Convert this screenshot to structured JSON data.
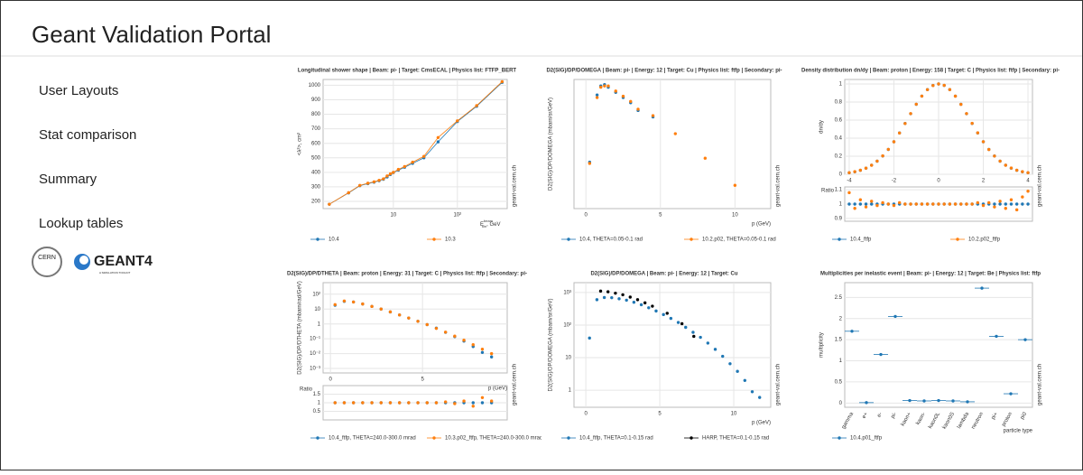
{
  "header": {
    "title": "Geant Validation Portal"
  },
  "nav": [
    "User Layouts",
    "Stat comparison",
    "Summary",
    "Lookup tables"
  ],
  "logos": {
    "cern": "CERN",
    "geant": "GEANT4",
    "tagline": "A SIMULATION TOOLKIT"
  },
  "watermark": "geant-val.cern.ch",
  "charts": [
    {
      "type": "scatter",
      "title": "Longitudinal shower shape | Beam: pi- | Target: CmsECAL | Physics list: FTFP_BERT",
      "xlabel": {
        "main": "E",
        "sup": "beam",
        "sub": "kin",
        "unit": ", GeV"
      },
      "ylabel": "<λ²>, cm²",
      "xlog": true,
      "line": true,
      "xlim": [
        0.8,
        600
      ],
      "ylim": [
        150,
        1040
      ],
      "xticks": [
        10,
        {
          "value": 100,
          "label": "10²"
        }
      ],
      "yticks": [
        200,
        300,
        400,
        500,
        600,
        700,
        800,
        900,
        1000
      ],
      "series": [
        {
          "name": "10.4",
          "color": "#1f77b4",
          "x": [
            1,
            2,
            3,
            4,
            5,
            6,
            7,
            8,
            9,
            10,
            12,
            15,
            20,
            30,
            50,
            100,
            200,
            500
          ],
          "values": [
            180,
            258,
            308,
            322,
            332,
            342,
            352,
            368,
            385,
            398,
            415,
            435,
            462,
            500,
            610,
            750,
            855,
            1020
          ]
        },
        {
          "name": "10.3",
          "color": "#ff7f0e",
          "x": [
            1,
            2,
            3,
            4,
            5,
            6,
            7,
            8,
            9,
            10,
            12,
            15,
            20,
            30,
            50,
            100,
            200,
            500
          ],
          "values": [
            180,
            260,
            310,
            325,
            335,
            345,
            355,
            375,
            390,
            400,
            420,
            440,
            470,
            510,
            640,
            755,
            860,
            1025
          ]
        }
      ]
    },
    {
      "type": "scatter",
      "title": "D2(SIG)/DP/DOMEGA | Beam: pi- | Energy: 12 | Target: Cu | Physics list: ftfp | Secondary: pi-",
      "xlabel": "p (GeV)",
      "ylabel": "D2(SIG)/DP/DOMEGA (mbarn/sr/GeV)",
      "xlim": [
        -0.8,
        12.4
      ],
      "ylim": [
        0,
        100
      ],
      "xticks": [
        0,
        5,
        10
      ],
      "series": [
        {
          "name": "10.4, THETA=0.05-0.1 rad",
          "color": "#1f77b4",
          "x": [
            0.25,
            0.75,
            1,
            1.25,
            1.5,
            2,
            2.5,
            3,
            3.5,
            4.5
          ],
          "values": [
            36,
            88,
            95,
            96,
            94,
            90,
            86,
            82,
            76,
            71
          ]
        },
        {
          "name": "10.2.p02, THETA=0.05-0.1 rad",
          "color": "#ff7f0e",
          "x": [
            0.25,
            0.75,
            1,
            1.25,
            1.5,
            2,
            2.5,
            3,
            3.5,
            4.5,
            6,
            8,
            10
          ],
          "values": [
            35,
            86,
            94,
            95,
            95,
            91,
            87,
            83,
            77,
            72,
            58,
            39,
            18
          ]
        }
      ]
    },
    {
      "type": "scatter",
      "title": "Density distribution dn/dy | Beam: proton | Energy: 158 | Target: C | Physics list: ftfp | Secondary: pi-",
      "ylabel": "dn/dy",
      "xlim": [
        -4.2,
        4.2
      ],
      "ylim": [
        0,
        1.05
      ],
      "xticks": [
        -4,
        -2,
        0,
        2,
        4
      ],
      "yticks": [
        0,
        0.2,
        0.4,
        0.6,
        0.8,
        1
      ],
      "series": [
        {
          "name": "10.4_ftfp",
          "color": "#1f77b4",
          "x": [
            -4,
            -3.75,
            -3.5,
            -3.25,
            -3,
            -2.75,
            -2.5,
            -2.25,
            -2,
            -1.75,
            -1.5,
            -1.25,
            -1,
            -0.75,
            -0.5,
            -0.25,
            0,
            0.25,
            0.5,
            0.75,
            1,
            1.25,
            1.5,
            1.75,
            2,
            2.25,
            2.5,
            2.75,
            3,
            3.25,
            3.5,
            3.75,
            4
          ],
          "values": [
            0.017,
            0.028,
            0.044,
            0.068,
            0.101,
            0.145,
            0.203,
            0.275,
            0.36,
            0.458,
            0.563,
            0.671,
            0.775,
            0.866,
            0.938,
            0.984,
            1,
            0.984,
            0.938,
            0.866,
            0.775,
            0.671,
            0.563,
            0.458,
            0.36,
            0.275,
            0.203,
            0.145,
            0.101,
            0.068,
            0.044,
            0.028,
            0.017
          ]
        },
        {
          "name": "10.2.p02_ftfp",
          "color": "#ff7f0e",
          "x": [
            -4,
            -3.75,
            -3.5,
            -3.25,
            -3,
            -2.75,
            -2.5,
            -2.25,
            -2,
            -1.75,
            -1.5,
            -1.25,
            -1,
            -0.75,
            -0.5,
            -0.25,
            0,
            0.25,
            0.5,
            0.75,
            1,
            1.25,
            1.5,
            1.75,
            2,
            2.25,
            2.5,
            2.75,
            3,
            3.25,
            3.5,
            3.75,
            4
          ],
          "values": [
            0.018,
            0.029,
            0.045,
            0.068,
            0.1,
            0.146,
            0.204,
            0.276,
            0.36,
            0.457,
            0.562,
            0.672,
            0.776,
            0.866,
            0.937,
            0.983,
            1,
            0.985,
            0.938,
            0.865,
            0.774,
            0.672,
            0.564,
            0.459,
            0.361,
            0.274,
            0.202,
            0.146,
            0.1,
            0.069,
            0.045,
            0.029,
            0.018
          ]
        }
      ],
      "ratio": {
        "ylabel": "Ratio",
        "ylim": [
          0.88,
          1.12
        ],
        "yticks": [
          0.9,
          1,
          1.1
        ],
        "series": [
          {
            "color": "#1f77b4",
            "x": [
              -4,
              -3.75,
              -3.5,
              -3.25,
              -3,
              -2.75,
              -2.5,
              -2.25,
              -2,
              -1.75,
              -1.5,
              -1.25,
              -1,
              -0.75,
              -0.5,
              -0.25,
              0,
              0.25,
              0.5,
              0.75,
              1,
              1.25,
              1.5,
              1.75,
              2,
              2.25,
              2.5,
              2.75,
              3,
              3.25,
              3.5,
              3.75,
              4
            ],
            "values": [
              1,
              1,
              1,
              1,
              1,
              1,
              1,
              1,
              1,
              1,
              1,
              1,
              1,
              1,
              1,
              1,
              1,
              1,
              1,
              1,
              1,
              1,
              1,
              1,
              1,
              1,
              1,
              1,
              1,
              1,
              1,
              1,
              1
            ]
          },
          {
            "color": "#ff7f0e",
            "x": [
              -4,
              -3.75,
              -3.5,
              -3.25,
              -3,
              -2.75,
              -2.5,
              -2.25,
              -2,
              -1.75,
              -1.5,
              -1.25,
              -1,
              -0.75,
              -0.5,
              -0.25,
              0,
              0.25,
              0.5,
              0.75,
              1,
              1.25,
              1.5,
              1.75,
              2,
              2.25,
              2.5,
              2.75,
              3,
              3.25,
              3.5,
              3.75,
              4
            ],
            "values": [
              1.08,
              0.97,
              1.03,
              0.98,
              1.02,
              0.99,
              1.01,
              1,
              0.99,
              1.01,
              1,
              1,
              1,
              1,
              1,
              1,
              1,
              1,
              1,
              1,
              1,
              1,
              1,
              1.01,
              0.99,
              1.01,
              0.98,
              1.02,
              0.97,
              1.03,
              0.96,
              1.05,
              1.09
            ]
          }
        ]
      }
    },
    {
      "type": "scatter",
      "title": "D2(SIG)/DP/DTHETA | Beam: proton | Energy: 31 | Target: C | Physics list: ftfp | Secondary: pi-",
      "xlabel": "p (GeV)",
      "ylabel": "D2(SIG)/DP/DTHETA (mbarn/rad/GeV)",
      "ylog": true,
      "xlim": [
        -0.4,
        9.6
      ],
      "ylim": [
        0.0005,
        600
      ],
      "xticks": [
        0,
        5
      ],
      "yticks": [
        {
          "value": 100,
          "label": "10²"
        },
        10,
        1,
        {
          "value": 0.1,
          "label": "10⁻¹"
        },
        {
          "value": 0.01,
          "label": "10⁻²"
        },
        {
          "value": 0.001,
          "label": "10⁻³"
        }
      ],
      "series": [
        {
          "name": "10.4_ftfp, THETA=240.0-300.0 mrad",
          "color": "#1f77b4",
          "x": [
            0.25,
            0.75,
            1.25,
            1.75,
            2.25,
            2.75,
            3.25,
            3.75,
            4.25,
            4.75,
            5.25,
            5.75,
            6.25,
            6.75,
            7.25,
            7.75,
            8.25,
            8.75
          ],
          "values": [
            18,
            33,
            30,
            22,
            15,
            10,
            6.4,
            4,
            2.5,
            1.5,
            0.9,
            0.52,
            0.27,
            0.14,
            0.07,
            0.03,
            0.012,
            0.006
          ]
        },
        {
          "name": "10.3.p02_ftfp, THETA=240.0-300.0 mrad",
          "color": "#ff7f0e",
          "x": [
            0.25,
            0.75,
            1.25,
            1.75,
            2.25,
            2.75,
            3.25,
            3.75,
            4.25,
            4.75,
            5.25,
            5.75,
            6.25,
            6.75,
            7.25,
            7.75,
            8.25,
            8.75
          ],
          "values": [
            20,
            35,
            30,
            22,
            15,
            10,
            6.5,
            4,
            2.5,
            1.5,
            0.9,
            0.5,
            0.28,
            0.15,
            0.08,
            0.04,
            0.02,
            0.01
          ]
        }
      ],
      "ratio": {
        "ylabel": "Ratio",
        "ylim": [
          0,
          2
        ],
        "yticks": [
          0.5,
          1,
          1.5
        ],
        "series": [
          {
            "color": "#1f77b4",
            "x": [
              0.25,
              0.75,
              1.25,
              1.75,
              2.25,
              2.75,
              3.25,
              3.75,
              4.25,
              4.75,
              5.25,
              5.75,
              6.25,
              6.75,
              7.25,
              7.75,
              8.25,
              8.75
            ],
            "values": [
              1,
              1,
              1,
              1,
              1,
              1,
              1,
              1,
              1,
              1,
              1,
              1,
              1,
              1,
              1,
              1,
              1,
              1
            ]
          },
          {
            "color": "#ff7f0e",
            "x": [
              0.25,
              0.75,
              1.25,
              1.75,
              2.25,
              2.75,
              3.25,
              3.75,
              4.25,
              4.75,
              5.25,
              5.75,
              6.25,
              6.75,
              7.25,
              7.75,
              8.25,
              8.75
            ],
            "values": [
              1,
              1,
              1,
              1,
              1,
              1,
              1,
              1,
              1,
              1,
              1,
              1,
              1.05,
              0.95,
              1.1,
              0.8,
              1.3,
              1.1
            ]
          }
        ]
      }
    },
    {
      "type": "scatter",
      "title": "D2(SIG)/DP/DOMEGA | Beam: pi- | Energy: 12 | Target: Cu",
      "xlabel": "p (GeV)",
      "ylabel": "D2(SIG)/DP/DOMEGA (mbarn/sr/GeV)",
      "ylog": true,
      "xlim": [
        -0.8,
        12.5
      ],
      "ylim": [
        0.3,
        2000
      ],
      "xticks": [
        0,
        5,
        10
      ],
      "yticks": [
        1,
        10,
        {
          "value": 100,
          "label": "10²"
        },
        {
          "value": 1000,
          "label": "10³"
        }
      ],
      "series": [
        {
          "name": "10.4_ftfp, THETA=0.1-0.15 rad",
          "color": "#1f77b4",
          "x": [
            0.25,
            0.75,
            1.25,
            1.75,
            2.25,
            2.75,
            3.25,
            3.75,
            4.25,
            4.75,
            5.25,
            5.75,
            6.25,
            6.75,
            7.25,
            7.75,
            8.25,
            8.75,
            9.25,
            9.75,
            10.25,
            10.75,
            11.25,
            11.75
          ],
          "values": [
            40,
            600,
            700,
            690,
            640,
            580,
            500,
            420,
            340,
            270,
            210,
            160,
            120,
            85,
            60,
            42,
            28,
            18,
            11,
            6.5,
            3.8,
            2,
            0.9,
            0.6
          ]
        },
        {
          "name": "HARP, THETA=0.1-0.15 rad",
          "color": "#000000",
          "x": [
            1,
            1.5,
            2,
            2.5,
            3,
            3.5,
            4,
            4.5,
            5.5,
            6.5,
            7.3
          ],
          "values": [
            1100,
            1050,
            950,
            850,
            720,
            600,
            480,
            380,
            230,
            110,
            45
          ]
        }
      ]
    },
    {
      "type": "scatter",
      "title": "Multiplicities per inelastic event | Beam: pi- | Energy: 12 | Target: Be | Physics list: ftfp",
      "xlabel": "particle type",
      "ylabel": "multiplicity",
      "ylim": [
        -0.1,
        2.85
      ],
      "yticks": [
        0,
        0.5,
        1,
        1.5,
        2,
        2.5
      ],
      "categories": [
        "gamma",
        "e+",
        "e-",
        "pi-",
        "kaon+",
        "kaon-",
        "kaon0L",
        "kaon0S",
        "lambda",
        "neutron",
        "pi+",
        "proton",
        "pi0"
      ],
      "series": [
        {
          "name": "10.4.p01_ftfp",
          "color": "#1f77b4",
          "values": [
            1.7,
            0.01,
            1.15,
            2.05,
            0.06,
            0.05,
            0.06,
            0.05,
            0.03,
            2.72,
            1.58,
            0.22,
            1.5
          ]
        }
      ]
    }
  ]
}
